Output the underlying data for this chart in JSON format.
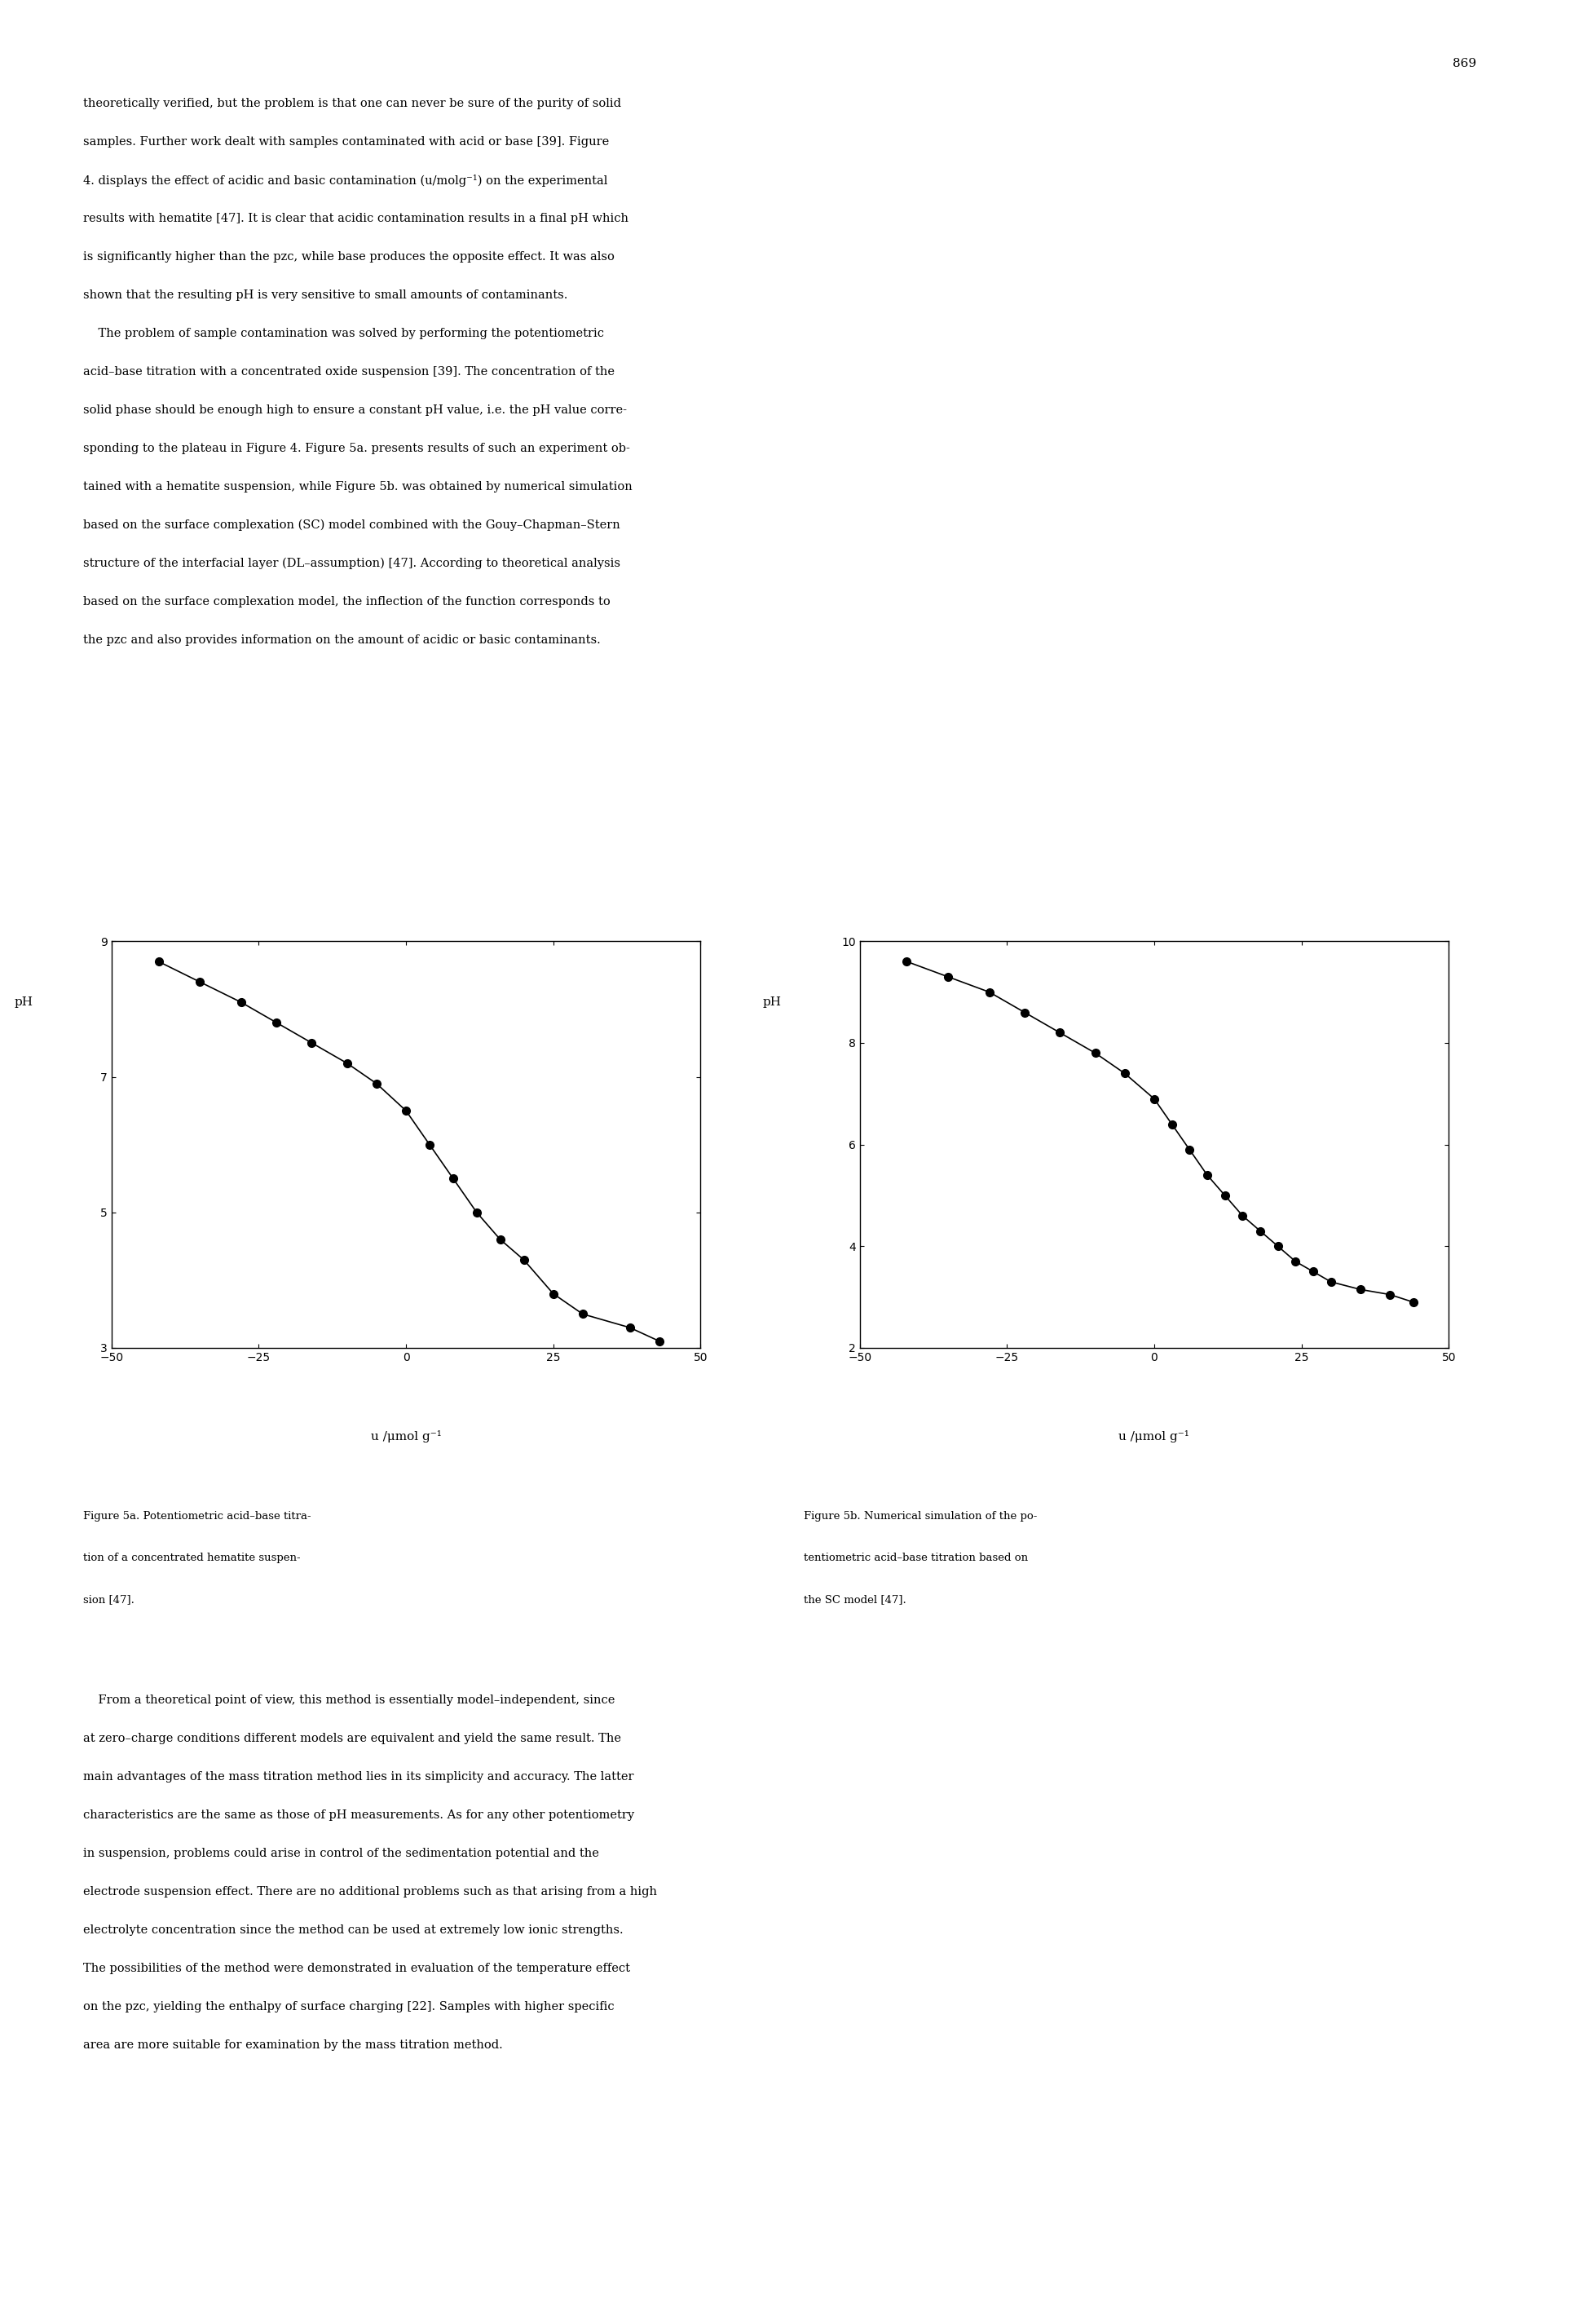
{
  "page_number": "869",
  "background_color": "#ffffff",
  "text_color": "#000000",
  "top_paragraph": "theoretically verified, but the problem is that one can never be sure of the purity of solid\nsamples. Further work dealt with samples contaminated with acid or base [39]. Figure\n4. displays the effect of acidic and basic contamination (u/molg⁻¹) on the experimental\nresults with hematite [47]. It is clear that acidic contamination results in a final pH which\nis significantly higher than the pzc, while base produces the opposite effect. It was also\nshown that the resulting pH is very sensitive to small amounts of contaminants.\n    The problem of sample contamination was solved by performing the potentiometric\nacid–base titration with a concentrated oxide suspension [39]. The concentration of the\nsolid phase should be enough high to ensure a constant pH value, i.e. the pH value corre-\nsponding to the plateau in Figure 4. Figure 5a. presents results of such an experiment ob-\ntained with a hematite suspension, while Figure 5b. was obtained by numerical simulation\nbased on the surface complexation (SC) model combined with the Gouy–Chapman–Stern\nstructure of the interfacial layer (DL–assumption) [47]. According to theoretical analysis\nbased on the surface complexation model, the inflection of the function corresponds to\nthe pzc and also provides information on the amount of acidic or basic contaminants.",
  "bottom_paragraph": "    From a theoretical point of view, this method is essentially model–independent, since\nat zero–charge conditions different models are equivalent and yield the same result. The\nmain advantages of the mass titration method lies in its simplicity and accuracy. The latter\ncharacteristics are the same as those of pH measurements. As for any other potentiometry\nin suspension, problems could arise in control of the sedimentation potential and the\nelectrode suspension effect. There are no additional problems such as that arising from a high\nelectrolyte concentration since the method can be used at extremely low ionic strengths.\nThe possibilities of the method were demonstrated in evaluation of the temperature effect\non the pzc, yielding the enthalpy of surface charging [22]. Samples with higher specific\narea are more suitable for examination by the mass titration method.",
  "fig5a_caption": "Figure 5a. Potentiometric acid–base titra-\ntion of a concentrated hematite suspen-\nsion [47].",
  "fig5b_caption": "Figure 5b. Numerical simulation of the po-\ntentiometric acid–base titration based on\nthe SC model [47].",
  "fig5a": {
    "xlabel": "u /μmol g⁻¹",
    "ylabel": "pH",
    "xlim": [
      -50,
      50
    ],
    "ylim": [
      3,
      9
    ],
    "yticks": [
      3,
      5,
      7,
      9
    ],
    "xticks": [
      -50,
      -25,
      0,
      25,
      50
    ],
    "line_color": "#000000",
    "marker_color": "#000000",
    "x_data": [
      -42,
      -35,
      -28,
      -22,
      -16,
      -10,
      -5,
      0,
      4,
      8,
      12,
      16,
      20,
      25,
      30,
      38,
      43
    ],
    "y_data": [
      8.7,
      8.4,
      8.1,
      7.8,
      7.5,
      7.2,
      6.9,
      6.5,
      6.0,
      5.5,
      5.0,
      4.6,
      4.3,
      3.8,
      3.5,
      3.3,
      3.1
    ]
  },
  "fig5b": {
    "xlabel": "u /μmol g⁻¹",
    "ylabel": "pH",
    "xlim": [
      -50,
      50
    ],
    "ylim": [
      2,
      10
    ],
    "yticks": [
      2,
      4,
      6,
      8,
      10
    ],
    "xticks": [
      -50,
      -25,
      0,
      25,
      50
    ],
    "line_color": "#000000",
    "marker_color": "#000000",
    "x_data": [
      -42,
      -35,
      -28,
      -22,
      -16,
      -10,
      -5,
      0,
      3,
      6,
      9,
      12,
      15,
      18,
      21,
      24,
      27,
      30,
      35,
      40,
      44
    ],
    "y_data": [
      9.6,
      9.3,
      9.0,
      8.6,
      8.2,
      7.8,
      7.4,
      6.9,
      6.4,
      5.9,
      5.4,
      5.0,
      4.6,
      4.3,
      4.0,
      3.7,
      3.5,
      3.3,
      3.15,
      3.05,
      2.9
    ]
  }
}
